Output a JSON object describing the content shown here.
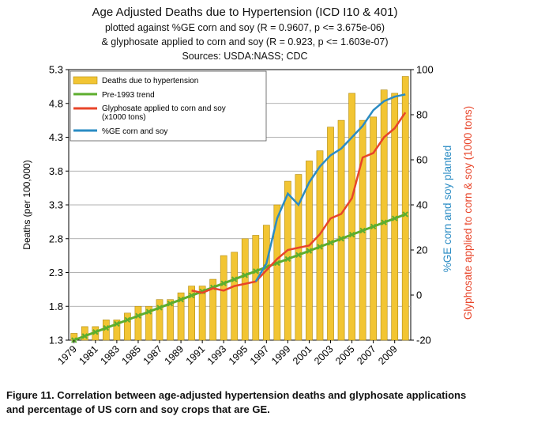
{
  "chart_data": {
    "type": "bar",
    "title": "Age Adjusted Deaths due to Hypertension (ICD I10 & 401)",
    "subtitles": [
      "plotted against %GE corn and soy (R = 0.9607, p <= 3.675e-06)",
      "& glyphosate applied to corn and soy (R = 0.923, p <= 1.603e-07)",
      "Sources: USDA:NASS; CDC"
    ],
    "ylabel_left": "Deaths (per 100,000)",
    "ylabel_right_1": "%GE corn and soy planted",
    "ylabel_right_2": "Glyphosate applied to corn & soy (1000 tons)",
    "ylim_left": [
      1.3,
      5.3
    ],
    "ylim_right": [
      -20,
      100
    ],
    "left_ticks": [
      "1.3",
      "1.8",
      "2.3",
      "2.8",
      "3.3",
      "3.8",
      "4.3",
      "4.8",
      "5.3"
    ],
    "right_ticks": [
      "-20",
      "0",
      "20",
      "40",
      "60",
      "80",
      "100"
    ],
    "x_tick_labels": [
      "1979",
      "1981",
      "1983",
      "1985",
      "1987",
      "1989",
      "1991",
      "1993",
      "1995",
      "1997",
      "1999",
      "2001",
      "2003",
      "2005",
      "2007",
      "2009"
    ],
    "years": [
      1979,
      1980,
      1981,
      1982,
      1983,
      1984,
      1985,
      1986,
      1987,
      1988,
      1989,
      1990,
      1991,
      1992,
      1993,
      1994,
      1995,
      1996,
      1997,
      1998,
      1999,
      2000,
      2001,
      2002,
      2003,
      2004,
      2005,
      2006,
      2007,
      2008,
      2009,
      2010
    ],
    "legend": [
      "Deaths due to hypertension",
      "Pre-1993 trend",
      "Glyphosate applied to corn and soy",
      "(x1000 tons)",
      "%GE corn and soy"
    ],
    "legend_position": "top-left",
    "colors": {
      "bars": "#f2c533",
      "trend": "#5dae2e",
      "glyphosate": "#e8452a",
      "ge": "#2b8cc4"
    },
    "series": [
      {
        "name": "Deaths due to hypertension",
        "axis": "left",
        "values": [
          1.4,
          1.5,
          1.5,
          1.6,
          1.6,
          1.7,
          1.8,
          1.8,
          1.9,
          1.9,
          2.0,
          2.1,
          2.1,
          2.2,
          2.55,
          2.6,
          2.8,
          2.85,
          3.0,
          3.3,
          3.65,
          3.75,
          3.95,
          4.1,
          4.45,
          4.55,
          4.95,
          4.55,
          4.6,
          5.0,
          4.95,
          5.2
        ]
      },
      {
        "name": "Pre-1993 trend",
        "axis": "left",
        "values": [
          1.3,
          1.36,
          1.42,
          1.48,
          1.54,
          1.6,
          1.66,
          1.72,
          1.78,
          1.84,
          1.9,
          1.96,
          2.02,
          2.08,
          2.14,
          2.2,
          2.26,
          2.32,
          2.38,
          2.44,
          2.5,
          2.56,
          2.62,
          2.68,
          2.74,
          2.8,
          2.86,
          2.92,
          2.98,
          3.04,
          3.1,
          3.16
        ]
      },
      {
        "name": "Glyphosate applied to corn and soy (x1000 tons)",
        "axis": "right",
        "x": [
          1990,
          1991,
          1992,
          1993,
          1994,
          1995,
          1996,
          1997,
          1998,
          1999,
          2000,
          2001,
          2002,
          2003,
          2004,
          2005,
          2006,
          2007,
          2008,
          2009,
          2010
        ],
        "values": [
          2,
          1,
          3,
          2,
          4,
          5,
          6,
          11,
          16,
          20,
          21,
          22,
          27,
          34,
          36,
          43,
          61,
          63,
          70,
          74,
          81
        ]
      },
      {
        "name": "%GE corn and soy",
        "axis": "right",
        "x": [
          1996,
          1997,
          1998,
          1999,
          2000,
          2001,
          2002,
          2003,
          2004,
          2005,
          2006,
          2007,
          2008,
          2009,
          2010
        ],
        "values": [
          6,
          14,
          34,
          45,
          40,
          50,
          57,
          62,
          65,
          70,
          75,
          82,
          86,
          88,
          89
        ]
      }
    ]
  },
  "caption_line1": "Figure 11. Correlation between age-adjusted hypertension deaths and glyphosate applications",
  "caption_line2": "and percentage of US corn and soy crops that are GE."
}
